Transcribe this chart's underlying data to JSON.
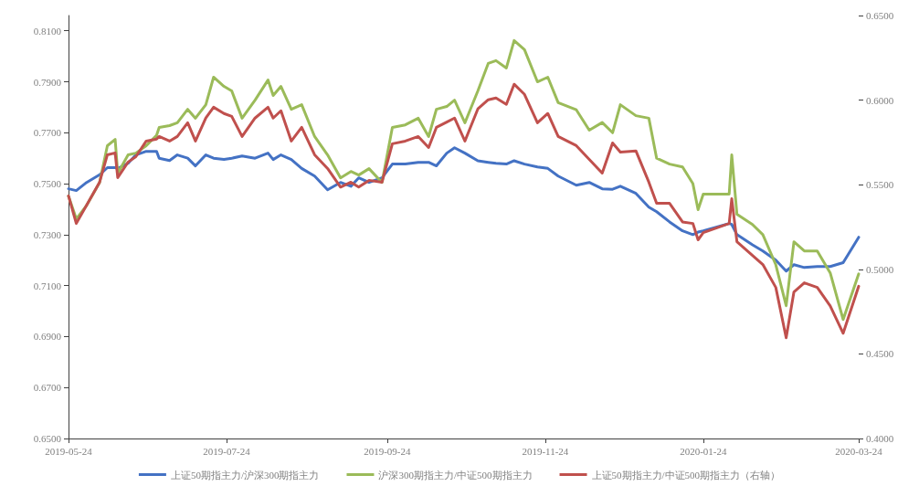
{
  "chart_data": {
    "type": "line",
    "x": [
      "2019-05-24",
      "2019-05-27",
      "2019-05-31",
      "2019-06-05",
      "2019-06-08",
      "2019-06-11",
      "2019-06-12",
      "2019-06-16",
      "2019-06-19",
      "2019-06-23",
      "2019-06-27",
      "2019-06-28",
      "2019-07-02",
      "2019-07-05",
      "2019-07-09",
      "2019-07-12",
      "2019-07-16",
      "2019-07-19",
      "2019-07-23",
      "2019-07-26",
      "2019-07-30",
      "2019-08-04",
      "2019-08-09",
      "2019-08-11",
      "2019-08-14",
      "2019-08-18",
      "2019-08-22",
      "2019-08-27",
      "2019-09-01",
      "2019-09-06",
      "2019-09-10",
      "2019-09-13",
      "2019-09-17",
      "2019-09-22",
      "2019-09-26",
      "2019-10-01",
      "2019-10-06",
      "2019-10-10",
      "2019-10-13",
      "2019-10-17",
      "2019-10-20",
      "2019-10-24",
      "2019-10-29",
      "2019-11-02",
      "2019-11-05",
      "2019-11-09",
      "2019-11-12",
      "2019-11-16",
      "2019-11-21",
      "2019-11-25",
      "2019-11-29",
      "2019-12-06",
      "2019-12-11",
      "2019-12-16",
      "2019-12-20",
      "2019-12-23",
      "2019-12-29",
      "2020-01-03",
      "2020-01-06",
      "2020-01-11",
      "2020-01-16",
      "2020-01-20",
      "2020-01-22",
      "2020-01-24",
      "2020-02-03",
      "2020-02-04",
      "2020-02-06",
      "2020-02-12",
      "2020-02-16",
      "2020-02-21",
      "2020-02-25",
      "2020-02-28",
      "2020-03-03",
      "2020-03-08",
      "2020-03-13",
      "2020-03-18",
      "2020-03-24"
    ],
    "series": [
      {
        "name": "上证50期指主力/沪深300期指主力",
        "color": "#4472c4",
        "values": [
          0.748,
          0.7473,
          0.7505,
          0.7535,
          0.7563,
          0.7563,
          0.756,
          0.758,
          0.7613,
          0.7627,
          0.7627,
          0.76,
          0.7591,
          0.7613,
          0.76,
          0.757,
          0.7613,
          0.76,
          0.7595,
          0.76,
          0.7609,
          0.76,
          0.762,
          0.7595,
          0.7613,
          0.7595,
          0.756,
          0.753,
          0.7476,
          0.7505,
          0.749,
          0.7523,
          0.7505,
          0.7523,
          0.7577,
          0.7577,
          0.7584,
          0.7584,
          0.757,
          0.762,
          0.7641,
          0.762,
          0.759,
          0.7584,
          0.758,
          0.7577,
          0.759,
          0.7577,
          0.7566,
          0.756,
          0.753,
          0.7494,
          0.7505,
          0.748,
          0.7478,
          0.749,
          0.7462,
          0.7408,
          0.739,
          0.735,
          0.7315,
          0.73,
          0.731,
          0.7315,
          0.7344,
          0.734,
          0.73,
          0.726,
          0.7236,
          0.72,
          0.7157,
          0.7182,
          0.7171,
          0.7175,
          0.7175,
          0.719,
          0.729
        ]
      },
      {
        "name": "沪深300期指主力/中证500期指主力",
        "color": "#9bbb59",
        "values": [
          0.7451,
          0.7362,
          0.7415,
          0.7505,
          0.7649,
          0.7674,
          0.7541,
          0.7613,
          0.762,
          0.7649,
          0.769,
          0.7721,
          0.7728,
          0.7739,
          0.7792,
          0.7757,
          0.781,
          0.7918,
          0.7882,
          0.7864,
          0.7757,
          0.7828,
          0.7907,
          0.7846,
          0.7882,
          0.7792,
          0.781,
          0.7685,
          0.7613,
          0.7523,
          0.7548,
          0.7534,
          0.7559,
          0.7505,
          0.7721,
          0.7731,
          0.7757,
          0.7685,
          0.7792,
          0.7803,
          0.7828,
          0.7739,
          0.7864,
          0.7972,
          0.7983,
          0.7954,
          0.8062,
          0.8026,
          0.79,
          0.7918,
          0.7818,
          0.779,
          0.771,
          0.774,
          0.77,
          0.781,
          0.7767,
          0.7757,
          0.76,
          0.7577,
          0.7566,
          0.75,
          0.7398,
          0.7459,
          0.7459,
          0.7613,
          0.738,
          0.734,
          0.73,
          0.7182,
          0.7021,
          0.7272,
          0.7236,
          0.7236,
          0.715,
          0.6967,
          0.7146
        ]
      },
      {
        "name": "上证50期指主力/中证500期指主力（右轴）",
        "color": "#c0504d",
        "axis": "y2",
        "values": [
          0.5434,
          0.5271,
          0.538,
          0.5515,
          0.5677,
          0.5688,
          0.5542,
          0.5634,
          0.5666,
          0.5758,
          0.577,
          0.5785,
          0.5758,
          0.5785,
          0.5866,
          0.5758,
          0.5894,
          0.5958,
          0.5921,
          0.5904,
          0.5785,
          0.5894,
          0.5958,
          0.5894,
          0.5937,
          0.5758,
          0.5839,
          0.5677,
          0.5596,
          0.5486,
          0.5515,
          0.5486,
          0.5526,
          0.5515,
          0.5742,
          0.5758,
          0.5785,
          0.572,
          0.5839,
          0.587,
          0.5894,
          0.5758,
          0.5948,
          0.6002,
          0.6013,
          0.5975,
          0.6094,
          0.6034,
          0.5866,
          0.5921,
          0.5785,
          0.5731,
          0.565,
          0.5569,
          0.5747,
          0.5693,
          0.57,
          0.5515,
          0.539,
          0.539,
          0.528,
          0.5271,
          0.5174,
          0.5217,
          0.5271,
          0.5417,
          0.5163,
          0.5082,
          0.5028,
          0.4893,
          0.4595,
          0.4866,
          0.492,
          0.4893,
          0.4784,
          0.4622,
          0.49
        ]
      }
    ],
    "xlim": [
      "2019-05-24",
      "2020-03-24"
    ],
    "xticks": [
      "2019-05-24",
      "2019-07-24",
      "2019-09-24",
      "2019-11-24",
      "2020-01-24",
      "2020-03-24"
    ],
    "ylim": [
      0.65,
      0.816
    ],
    "yticks": [
      {
        "value": 0.65,
        "label": "0.6500"
      },
      {
        "value": 0.67,
        "label": "0.6700"
      },
      {
        "value": 0.69,
        "label": "0.6900"
      },
      {
        "value": 0.71,
        "label": "0.7100"
      },
      {
        "value": 0.73,
        "label": "0.7300"
      },
      {
        "value": 0.75,
        "label": "0.7500"
      },
      {
        "value": 0.77,
        "label": "0.7700"
      },
      {
        "value": 0.79,
        "label": "0.7900"
      },
      {
        "value": 0.81,
        "label": "0.8100"
      }
    ],
    "y2lim": [
      0.4,
      0.65
    ],
    "y2ticks": [
      {
        "value": 0.4,
        "label": "0.4000"
      },
      {
        "value": 0.45,
        "label": "0.4500"
      },
      {
        "value": 0.5,
        "label": "0.5000"
      },
      {
        "value": 0.55,
        "label": "0.5500"
      },
      {
        "value": 0.6,
        "label": "0.6000"
      },
      {
        "value": 0.65,
        "label": "0.6500"
      }
    ],
    "grid": false,
    "legend": "bottom",
    "marker": "none",
    "line_style": "solid"
  }
}
